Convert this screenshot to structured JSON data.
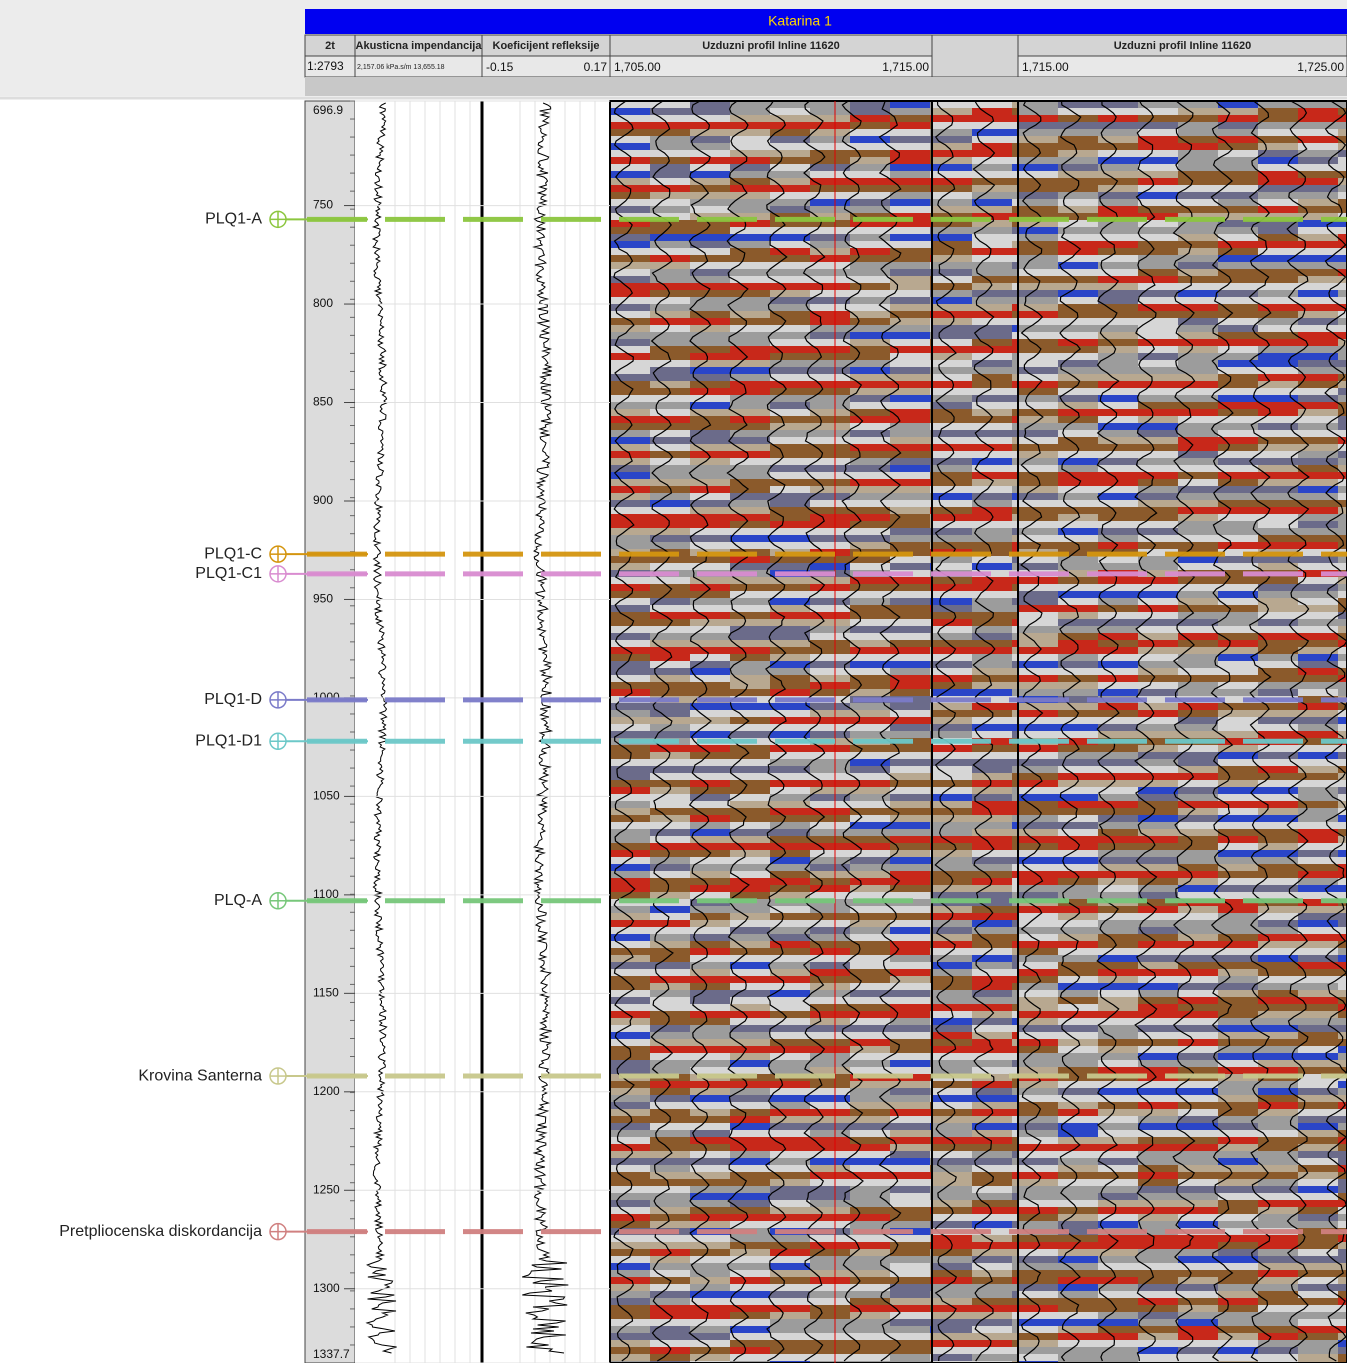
{
  "header": {
    "title": "Katarina 1"
  },
  "tracks": [
    {
      "title": "2t",
      "scale": "1:2793"
    },
    {
      "title": "Akusticna impendancija",
      "range": "2,157.06 kPa.s/m 13,655.18"
    },
    {
      "title": "Koeficijent refleksije",
      "min": "-0.15",
      "max": "0.17"
    },
    {
      "title": "Uzduzni profil Inline 11620",
      "min": "1,705.00",
      "max": "1,715.00"
    },
    {
      "title": "Uzduzni profil Inline 11620",
      "min": "1,715.00",
      "max": "1,725.00"
    }
  ],
  "depth_axis": {
    "ylim": [
      696.9,
      1337.7
    ],
    "ticks": [
      696.9,
      750,
      800,
      850,
      900,
      950,
      1000,
      1050,
      1100,
      1150,
      1200,
      1250,
      1300,
      1337.7
    ]
  },
  "horizons": [
    {
      "name": "PLQ1-A",
      "depth": 757,
      "color": "#8cc63f"
    },
    {
      "name": "PLQ1-C",
      "depth": 927,
      "color": "#d4950f"
    },
    {
      "name": "PLQ1-C1",
      "depth": 937,
      "color": "#d98cd0"
    },
    {
      "name": "PLQ1-D",
      "depth": 1001,
      "color": "#7b7bc9"
    },
    {
      "name": "PLQ1-D1",
      "depth": 1022,
      "color": "#6cc8c8"
    },
    {
      "name": "PLQ-A",
      "depth": 1103,
      "color": "#77c77a"
    },
    {
      "name": "Krovina Santerna",
      "depth": 1192,
      "color": "#c8c88c"
    },
    {
      "name": "Pretpliocenska diskordancija",
      "depth": 1271,
      "color": "#d08080"
    }
  ]
}
